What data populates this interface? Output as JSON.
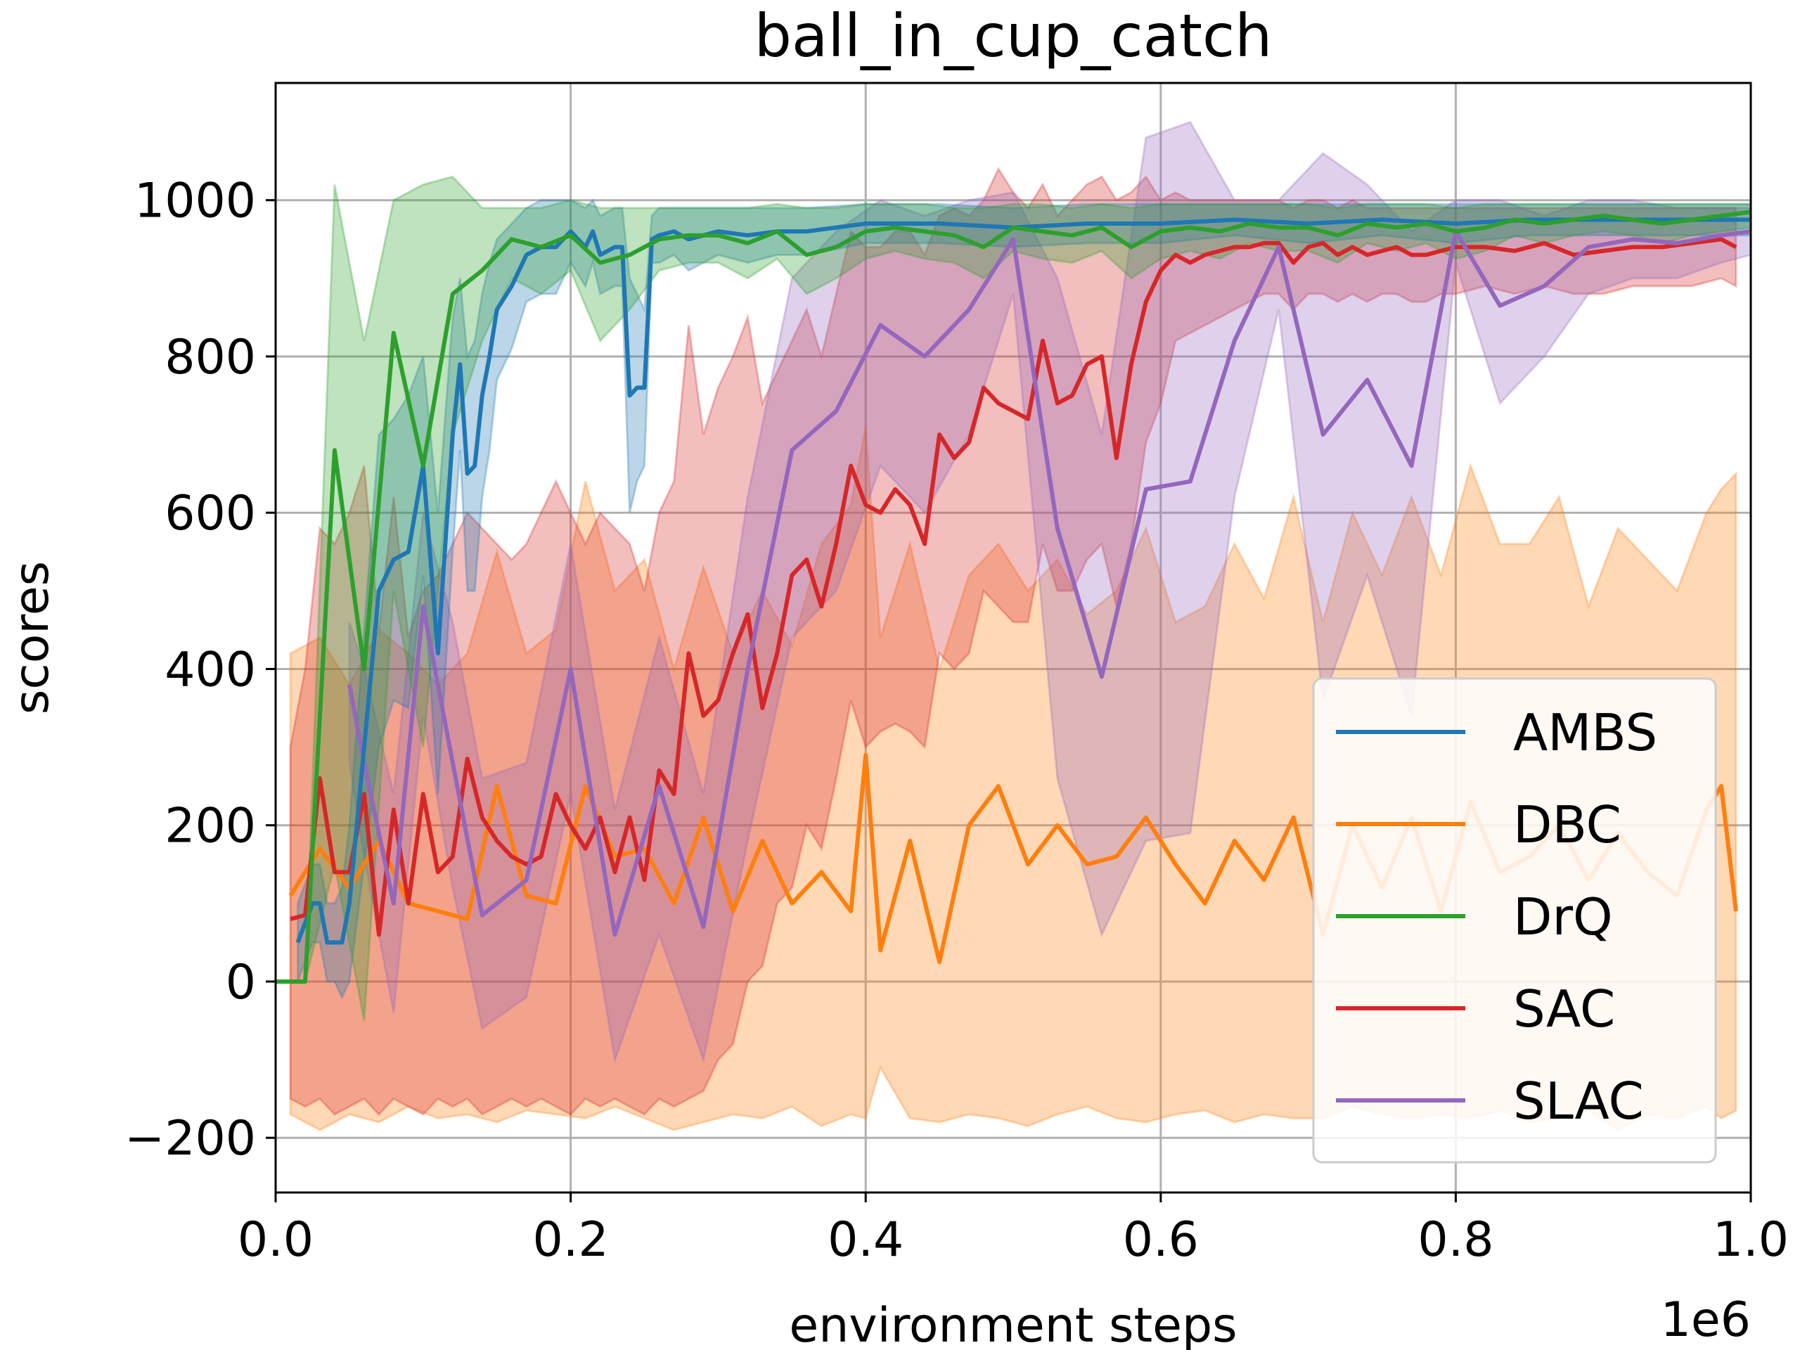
{
  "chart_data": {
    "type": "line",
    "title": "ball_in_cup_catch",
    "xlabel": "environment steps",
    "ylabel": "scores",
    "x_offset_text": "1e6",
    "xlim": [
      0,
      1.0
    ],
    "ylim": [
      -270,
      1150
    ],
    "xticks": [
      0.0,
      0.2,
      0.4,
      0.6,
      0.8,
      1.0
    ],
    "xtick_labels": [
      "0.0",
      "0.2",
      "0.4",
      "0.6",
      "0.8",
      "1.0"
    ],
    "yticks": [
      -200,
      0,
      200,
      400,
      600,
      800,
      1000
    ],
    "ytick_labels": [
      "−200",
      "0",
      "200",
      "400",
      "600",
      "800",
      "1000"
    ],
    "grid": true,
    "legend_position": "lower-right",
    "series": [
      {
        "name": "DBC",
        "color": "#ff7f0e",
        "x": [
          0.01,
          0.03,
          0.05,
          0.07,
          0.09,
          0.11,
          0.13,
          0.15,
          0.17,
          0.19,
          0.21,
          0.23,
          0.25,
          0.27,
          0.29,
          0.31,
          0.33,
          0.35,
          0.37,
          0.39,
          0.4,
          0.41,
          0.43,
          0.45,
          0.47,
          0.49,
          0.51,
          0.53,
          0.55,
          0.57,
          0.59,
          0.61,
          0.63,
          0.65,
          0.67,
          0.69,
          0.71,
          0.73,
          0.75,
          0.77,
          0.79,
          0.81,
          0.83,
          0.85,
          0.87,
          0.89,
          0.91,
          0.93,
          0.95,
          0.97,
          0.98,
          0.99
        ],
        "y": [
          110,
          170,
          120,
          180,
          100,
          90,
          80,
          250,
          110,
          100,
          250,
          160,
          170,
          100,
          210,
          90,
          180,
          100,
          140,
          90,
          290,
          40,
          180,
          25,
          200,
          250,
          150,
          200,
          150,
          160,
          210,
          150,
          100,
          180,
          130,
          210,
          60,
          200,
          120,
          210,
          90,
          230,
          140,
          160,
          200,
          130,
          190,
          140,
          110,
          220,
          250,
          90
        ],
        "upper": [
          420,
          440,
          380,
          450,
          420,
          380,
          420,
          550,
          420,
          450,
          640,
          500,
          540,
          400,
          530,
          420,
          500,
          430,
          560,
          610,
          710,
          440,
          560,
          400,
          520,
          560,
          500,
          540,
          470,
          500,
          580,
          460,
          480,
          560,
          490,
          620,
          460,
          600,
          520,
          620,
          520,
          660,
          560,
          560,
          620,
          480,
          580,
          540,
          500,
          600,
          630,
          650
        ],
        "lower": [
          -170,
          -190,
          -170,
          -180,
          -160,
          -175,
          -170,
          -180,
          -165,
          -170,
          -175,
          -160,
          -175,
          -190,
          -180,
          -170,
          -175,
          -160,
          -185,
          -170,
          -175,
          -110,
          -175,
          -180,
          -170,
          -175,
          -185,
          -170,
          -160,
          -175,
          -180,
          -170,
          -165,
          -180,
          -170,
          -175,
          -175,
          -160,
          -170,
          -175,
          -170,
          -175,
          -165,
          -180,
          -175,
          -165,
          -190,
          -170,
          -175,
          -160,
          -175,
          -165
        ]
      },
      {
        "name": "SAC",
        "color": "#d62728",
        "x": [
          0.01,
          0.02,
          0.03,
          0.04,
          0.05,
          0.06,
          0.07,
          0.08,
          0.09,
          0.1,
          0.11,
          0.12,
          0.13,
          0.14,
          0.15,
          0.16,
          0.17,
          0.18,
          0.19,
          0.2,
          0.21,
          0.22,
          0.23,
          0.24,
          0.25,
          0.26,
          0.27,
          0.28,
          0.29,
          0.3,
          0.31,
          0.32,
          0.33,
          0.34,
          0.35,
          0.36,
          0.37,
          0.38,
          0.39,
          0.4,
          0.41,
          0.42,
          0.43,
          0.44,
          0.45,
          0.46,
          0.47,
          0.48,
          0.49,
          0.5,
          0.51,
          0.52,
          0.53,
          0.54,
          0.55,
          0.56,
          0.57,
          0.58,
          0.59,
          0.6,
          0.61,
          0.62,
          0.63,
          0.64,
          0.65,
          0.66,
          0.67,
          0.68,
          0.69,
          0.7,
          0.71,
          0.72,
          0.73,
          0.74,
          0.75,
          0.76,
          0.77,
          0.78,
          0.79,
          0.8,
          0.82,
          0.84,
          0.86,
          0.88,
          0.9,
          0.92,
          0.94,
          0.96,
          0.98,
          0.99
        ],
        "y": [
          80,
          85,
          260,
          140,
          140,
          240,
          60,
          220,
          100,
          240,
          140,
          160,
          285,
          210,
          180,
          160,
          150,
          160,
          240,
          200,
          170,
          210,
          140,
          210,
          130,
          270,
          240,
          420,
          340,
          360,
          420,
          470,
          350,
          420,
          520,
          540,
          480,
          560,
          660,
          610,
          600,
          630,
          610,
          560,
          700,
          670,
          690,
          760,
          740,
          730,
          720,
          820,
          740,
          750,
          790,
          800,
          670,
          790,
          870,
          910,
          930,
          920,
          930,
          935,
          940,
          940,
          945,
          945,
          920,
          940,
          945,
          930,
          940,
          930,
          935,
          940,
          930,
          930,
          935,
          940,
          940,
          935,
          945,
          930,
          935,
          940,
          940,
          945,
          950,
          940
        ],
        "upper": [
          300,
          400,
          580,
          560,
          600,
          660,
          450,
          620,
          440,
          500,
          520,
          560,
          600,
          580,
          560,
          540,
          560,
          600,
          640,
          600,
          560,
          600,
          580,
          560,
          500,
          600,
          640,
          840,
          700,
          760,
          800,
          850,
          740,
          780,
          820,
          860,
          800,
          880,
          960,
          940,
          940,
          960,
          960,
          930,
          980,
          990,
          980,
          1000,
          1040,
          1010,
          990,
          1020,
          980,
          1000,
          1020,
          1030,
          1000,
          1010,
          1030,
          1000,
          1010,
          1000,
          1000,
          1000,
          1000,
          1000,
          1000,
          1000,
          990,
          1000,
          1000,
          990,
          1000,
          990,
          990,
          990,
          990,
          990,
          990,
          990,
          990,
          990,
          990,
          990,
          990,
          990,
          990,
          990,
          990,
          990
        ],
        "lower": [
          -150,
          -160,
          -150,
          -170,
          -160,
          -150,
          -170,
          -150,
          -160,
          -170,
          -150,
          -160,
          -150,
          -170,
          -160,
          -150,
          -160,
          -150,
          -160,
          -170,
          -150,
          -160,
          -150,
          -160,
          -170,
          -150,
          -160,
          -150,
          -140,
          -100,
          -80,
          0,
          20,
          100,
          120,
          200,
          170,
          260,
          360,
          300,
          320,
          330,
          320,
          300,
          420,
          400,
          420,
          500,
          480,
          460,
          460,
          560,
          500,
          500,
          540,
          560,
          480,
          560,
          690,
          740,
          820,
          830,
          840,
          850,
          860,
          870,
          880,
          880,
          860,
          880,
          880,
          870,
          880,
          870,
          880,
          880,
          870,
          870,
          880,
          880,
          890,
          880,
          890,
          880,
          880,
          890,
          890,
          890,
          900,
          890
        ]
      },
      {
        "name": "SLAC",
        "color": "#9467bd",
        "x": [
          0.05,
          0.06,
          0.08,
          0.1,
          0.12,
          0.14,
          0.17,
          0.2,
          0.23,
          0.26,
          0.29,
          0.32,
          0.35,
          0.38,
          0.41,
          0.44,
          0.47,
          0.5,
          0.53,
          0.56,
          0.59,
          0.62,
          0.65,
          0.68,
          0.71,
          0.74,
          0.77,
          0.8,
          0.83,
          0.86,
          0.89,
          0.92,
          0.95,
          0.98,
          1.0
        ],
        "y": [
          380,
          280,
          100,
          480,
          280,
          85,
          130,
          400,
          60,
          250,
          70,
          400,
          680,
          730,
          840,
          800,
          860,
          950,
          580,
          390,
          630,
          640,
          820,
          940,
          700,
          770,
          660,
          960,
          865,
          890,
          940,
          950,
          945,
          955,
          960
        ],
        "upper": [
          460,
          400,
          240,
          600,
          460,
          260,
          280,
          560,
          220,
          440,
          240,
          620,
          900,
          960,
          1000,
          980,
          1000,
          1010,
          900,
          700,
          1080,
          1100,
          1000,
          1000,
          1060,
          1020,
          960,
          1000,
          1000,
          980,
          1000,
          1000,
          990,
          990,
          990
        ],
        "lower": [
          280,
          160,
          -40,
          340,
          120,
          -60,
          -20,
          240,
          -100,
          60,
          -100,
          180,
          440,
          500,
          660,
          600,
          700,
          880,
          260,
          60,
          180,
          190,
          620,
          860,
          360,
          520,
          340,
          920,
          740,
          800,
          880,
          900,
          900,
          920,
          930
        ]
      },
      {
        "name": "AMBS",
        "color": "#1f77b4",
        "x": [
          0.015,
          0.025,
          0.03,
          0.035,
          0.04,
          0.045,
          0.05,
          0.06,
          0.07,
          0.08,
          0.09,
          0.1,
          0.11,
          0.12,
          0.125,
          0.13,
          0.135,
          0.14,
          0.145,
          0.15,
          0.16,
          0.17,
          0.18,
          0.19,
          0.2,
          0.21,
          0.215,
          0.22,
          0.23,
          0.235,
          0.24,
          0.245,
          0.25,
          0.255,
          0.26,
          0.27,
          0.28,
          0.3,
          0.32,
          0.34,
          0.36,
          0.4,
          0.45,
          0.5,
          0.55,
          0.6,
          0.65,
          0.7,
          0.75,
          0.8,
          0.85,
          0.9,
          0.95,
          1.0
        ],
        "y": [
          50,
          100,
          100,
          50,
          50,
          50,
          100,
          300,
          500,
          540,
          550,
          660,
          420,
          700,
          790,
          650,
          660,
          750,
          800,
          860,
          890,
          930,
          940,
          940,
          960,
          940,
          960,
          930,
          940,
          940,
          750,
          760,
          760,
          950,
          955,
          960,
          950,
          960,
          955,
          960,
          960,
          970,
          970,
          965,
          970,
          970,
          975,
          970,
          975,
          970,
          975,
          975,
          975,
          975
        ],
        "upper": [
          100,
          150,
          150,
          100,
          100,
          120,
          200,
          450,
          700,
          720,
          750,
          800,
          600,
          850,
          900,
          800,
          820,
          880,
          920,
          950,
          970,
          990,
          1000,
          1000,
          1000,
          990,
          1000,
          980,
          990,
          990,
          900,
          880,
          860,
          980,
          990,
          990,
          990,
          990,
          990,
          990,
          990,
          995,
          995,
          990,
          995,
          995,
          995,
          995,
          995,
          995,
          995,
          995,
          995,
          995
        ],
        "lower": [
          0,
          50,
          50,
          0,
          0,
          -20,
          0,
          150,
          300,
          360,
          350,
          520,
          240,
          550,
          680,
          500,
          500,
          620,
          680,
          770,
          810,
          870,
          880,
          880,
          920,
          890,
          920,
          880,
          890,
          890,
          600,
          640,
          660,
          920,
          920,
          930,
          910,
          930,
          920,
          930,
          930,
          945,
          945,
          940,
          945,
          945,
          955,
          945,
          955,
          945,
          955,
          955,
          955,
          955
        ]
      },
      {
        "name": "DrQ",
        "color": "#2ca02c",
        "x": [
          0.0,
          0.02,
          0.04,
          0.06,
          0.08,
          0.1,
          0.12,
          0.14,
          0.16,
          0.18,
          0.2,
          0.22,
          0.24,
          0.26,
          0.28,
          0.3,
          0.32,
          0.34,
          0.36,
          0.38,
          0.4,
          0.42,
          0.44,
          0.46,
          0.48,
          0.5,
          0.52,
          0.54,
          0.56,
          0.58,
          0.6,
          0.62,
          0.64,
          0.66,
          0.68,
          0.7,
          0.72,
          0.74,
          0.76,
          0.78,
          0.8,
          0.82,
          0.84,
          0.86,
          0.88,
          0.9,
          0.92,
          0.94,
          0.96,
          0.98,
          1.0
        ],
        "y": [
          0,
          0,
          680,
          400,
          830,
          660,
          880,
          910,
          950,
          940,
          955,
          920,
          930,
          950,
          955,
          955,
          945,
          960,
          930,
          940,
          960,
          965,
          960,
          955,
          940,
          965,
          960,
          955,
          965,
          940,
          960,
          965,
          960,
          970,
          965,
          965,
          955,
          970,
          965,
          970,
          960,
          965,
          975,
          970,
          975,
          980,
          975,
          970,
          975,
          980,
          985
        ],
        "upper": [
          0,
          0,
          1020,
          820,
          1000,
          1020,
          1030,
          990,
          990,
          990,
          1000,
          990,
          990,
          990,
          990,
          990,
          990,
          995,
          990,
          990,
          995,
          995,
          995,
          990,
          990,
          995,
          995,
          990,
          995,
          990,
          995,
          995,
          995,
          995,
          995,
          995,
          990,
          995,
          995,
          995,
          990,
          995,
          995,
          995,
          995,
          995,
          995,
          995,
          995,
          995,
          995
        ],
        "lower": [
          0,
          0,
          150,
          -50,
          500,
          300,
          700,
          820,
          900,
          880,
          910,
          820,
          860,
          910,
          920,
          920,
          900,
          925,
          880,
          900,
          925,
          935,
          925,
          920,
          900,
          935,
          925,
          920,
          935,
          900,
          925,
          935,
          925,
          945,
          935,
          935,
          920,
          945,
          935,
          945,
          925,
          935,
          955,
          945,
          955,
          960,
          955,
          945,
          955,
          960,
          965
        ]
      }
    ],
    "legend_entries": [
      "AMBS",
      "DBC",
      "DrQ",
      "SAC",
      "SLAC"
    ]
  }
}
